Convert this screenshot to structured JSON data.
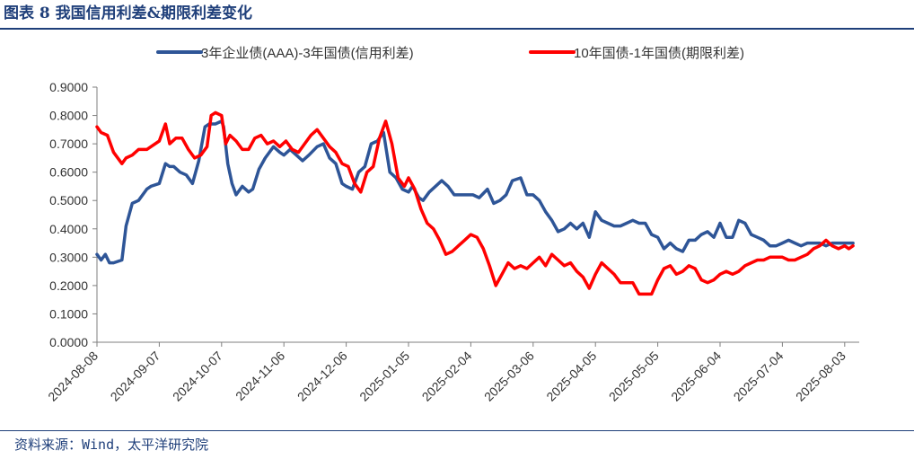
{
  "figure_title": "图表 8  我国信用利差&期限利差变化",
  "source": "资料来源：Wind，太平洋研究院",
  "chart_data": {
    "type": "line",
    "title": "",
    "xlabel": "",
    "ylabel": "",
    "ylim": [
      0,
      0.9
    ],
    "ytick_values": [
      0,
      0.1,
      0.2,
      0.3,
      0.4,
      0.5,
      0.6,
      0.7,
      0.8,
      0.9
    ],
    "yticks": [
      "0.0000",
      "0.1000",
      "0.2000",
      "0.3000",
      "0.4000",
      "0.5000",
      "0.6000",
      "0.7000",
      "0.8000",
      "0.9000"
    ],
    "xlim": [
      "2024-08-08",
      "2025-08-10"
    ],
    "xticks": [
      "2024-08-08",
      "2024-09-07",
      "2024-10-07",
      "2024-11-06",
      "2024-12-06",
      "2025-01-05",
      "2025-02-04",
      "2025-03-06",
      "2025-04-05",
      "2025-05-05",
      "2025-06-04",
      "2025-07-04",
      "2025-08-03"
    ],
    "grid": false,
    "legend_position": "top",
    "series": [
      {
        "name": "3年企业债(AAA)-3年国债(信用利差)",
        "color": "#2e5597",
        "x": [
          "2024-08-08",
          "2024-08-10",
          "2024-08-12",
          "2024-08-14",
          "2024-08-16",
          "2024-08-20",
          "2024-08-22",
          "2024-08-25",
          "2024-08-28",
          "2024-09-01",
          "2024-09-03",
          "2024-09-07",
          "2024-09-10",
          "2024-09-12",
          "2024-09-14",
          "2024-09-17",
          "2024-09-20",
          "2024-09-23",
          "2024-09-26",
          "2024-09-29",
          "2024-10-01",
          "2024-10-04",
          "2024-10-07",
          "2024-10-08",
          "2024-10-10",
          "2024-10-12",
          "2024-10-14",
          "2024-10-17",
          "2024-10-20",
          "2024-10-22",
          "2024-10-25",
          "2024-10-28",
          "2024-11-01",
          "2024-11-04",
          "2024-11-06",
          "2024-11-09",
          "2024-11-12",
          "2024-11-15",
          "2024-11-18",
          "2024-11-22",
          "2024-11-25",
          "2024-11-28",
          "2024-12-01",
          "2024-12-04",
          "2024-12-06",
          "2024-12-09",
          "2024-12-12",
          "2024-12-15",
          "2024-12-18",
          "2024-12-21",
          "2024-12-24",
          "2024-12-27",
          "2024-12-30",
          "2025-01-02",
          "2025-01-05",
          "2025-01-07",
          "2025-01-10",
          "2025-01-12",
          "2025-01-15",
          "2025-01-18",
          "2025-01-21",
          "2025-01-24",
          "2025-01-27",
          "2025-02-01",
          "2025-02-05",
          "2025-02-08",
          "2025-02-12",
          "2025-02-15",
          "2025-02-18",
          "2025-02-21",
          "2025-02-24",
          "2025-02-28",
          "2025-03-03",
          "2025-03-06",
          "2025-03-09",
          "2025-03-12",
          "2025-03-15",
          "2025-03-18",
          "2025-03-21",
          "2025-03-24",
          "2025-03-27",
          "2025-03-30",
          "2025-04-02",
          "2025-04-05",
          "2025-04-08",
          "2025-04-11",
          "2025-04-14",
          "2025-04-17",
          "2025-04-20",
          "2025-04-23",
          "2025-04-26",
          "2025-04-29",
          "2025-05-02",
          "2025-05-05",
          "2025-05-08",
          "2025-05-11",
          "2025-05-14",
          "2025-05-17",
          "2025-05-20",
          "2025-05-23",
          "2025-05-26",
          "2025-05-29",
          "2025-06-01",
          "2025-06-04",
          "2025-06-07",
          "2025-06-10",
          "2025-06-13",
          "2025-06-16",
          "2025-06-19",
          "2025-06-22",
          "2025-06-25",
          "2025-06-28",
          "2025-07-01",
          "2025-07-04",
          "2025-07-07",
          "2025-07-10",
          "2025-07-13",
          "2025-07-16",
          "2025-07-19",
          "2025-07-22",
          "2025-07-25",
          "2025-07-28",
          "2025-07-31",
          "2025-08-03",
          "2025-08-05",
          "2025-08-07"
        ],
        "values": [
          0.31,
          0.29,
          0.31,
          0.28,
          0.28,
          0.29,
          0.41,
          0.49,
          0.5,
          0.54,
          0.55,
          0.56,
          0.63,
          0.62,
          0.62,
          0.6,
          0.59,
          0.56,
          0.64,
          0.76,
          0.77,
          0.77,
          0.78,
          0.76,
          0.63,
          0.56,
          0.52,
          0.55,
          0.53,
          0.54,
          0.61,
          0.65,
          0.69,
          0.67,
          0.66,
          0.68,
          0.66,
          0.64,
          0.66,
          0.69,
          0.7,
          0.65,
          0.63,
          0.56,
          0.55,
          0.54,
          0.6,
          0.62,
          0.7,
          0.71,
          0.74,
          0.6,
          0.58,
          0.54,
          0.53,
          0.55,
          0.51,
          0.5,
          0.53,
          0.55,
          0.57,
          0.55,
          0.52,
          0.52,
          0.52,
          0.51,
          0.54,
          0.49,
          0.5,
          0.52,
          0.57,
          0.58,
          0.52,
          0.52,
          0.5,
          0.46,
          0.43,
          0.39,
          0.4,
          0.42,
          0.4,
          0.42,
          0.37,
          0.46,
          0.43,
          0.42,
          0.41,
          0.41,
          0.42,
          0.43,
          0.42,
          0.42,
          0.38,
          0.37,
          0.33,
          0.35,
          0.33,
          0.32,
          0.36,
          0.36,
          0.38,
          0.39,
          0.37,
          0.42,
          0.37,
          0.37,
          0.43,
          0.42,
          0.38,
          0.37,
          0.36,
          0.34,
          0.34,
          0.35,
          0.36,
          0.35,
          0.34,
          0.35,
          0.35,
          0.35,
          0.34,
          0.35,
          0.35,
          0.35,
          0.35,
          0.35
        ]
      },
      {
        "name": "10年国债-1年国债(期限利差)",
        "color": "#ff0000",
        "x": [
          "2024-08-08",
          "2024-08-10",
          "2024-08-13",
          "2024-08-16",
          "2024-08-20",
          "2024-08-22",
          "2024-08-25",
          "2024-08-28",
          "2024-09-01",
          "2024-09-03",
          "2024-09-07",
          "2024-09-10",
          "2024-09-12",
          "2024-09-15",
          "2024-09-18",
          "2024-09-21",
          "2024-09-24",
          "2024-09-27",
          "2024-09-30",
          "2024-10-02",
          "2024-10-04",
          "2024-10-07",
          "2024-10-09",
          "2024-10-11",
          "2024-10-14",
          "2024-10-17",
          "2024-10-20",
          "2024-10-23",
          "2024-10-26",
          "2024-10-29",
          "2024-11-01",
          "2024-11-04",
          "2024-11-07",
          "2024-11-10",
          "2024-11-13",
          "2024-11-16",
          "2024-11-19",
          "2024-11-22",
          "2024-11-25",
          "2024-11-28",
          "2024-12-01",
          "2024-12-04",
          "2024-12-07",
          "2024-12-10",
          "2024-12-13",
          "2024-12-16",
          "2024-12-19",
          "2024-12-22",
          "2024-12-25",
          "2024-12-28",
          "2024-12-31",
          "2025-01-03",
          "2025-01-05",
          "2025-01-08",
          "2025-01-11",
          "2025-01-14",
          "2025-01-17",
          "2025-01-20",
          "2025-01-23",
          "2025-01-26",
          "2025-01-29",
          "2025-02-01",
          "2025-02-04",
          "2025-02-07",
          "2025-02-10",
          "2025-02-13",
          "2025-02-16",
          "2025-02-19",
          "2025-02-22",
          "2025-02-25",
          "2025-02-28",
          "2025-03-03",
          "2025-03-06",
          "2025-03-09",
          "2025-03-12",
          "2025-03-15",
          "2025-03-18",
          "2025-03-21",
          "2025-03-24",
          "2025-03-27",
          "2025-03-30",
          "2025-04-02",
          "2025-04-05",
          "2025-04-08",
          "2025-04-11",
          "2025-04-14",
          "2025-04-17",
          "2025-04-20",
          "2025-04-23",
          "2025-04-26",
          "2025-04-29",
          "2025-05-02",
          "2025-05-05",
          "2025-05-08",
          "2025-05-11",
          "2025-05-14",
          "2025-05-17",
          "2025-05-20",
          "2025-05-23",
          "2025-05-26",
          "2025-05-29",
          "2025-06-01",
          "2025-06-04",
          "2025-06-07",
          "2025-06-10",
          "2025-06-13",
          "2025-06-16",
          "2025-06-19",
          "2025-06-22",
          "2025-06-25",
          "2025-06-28",
          "2025-07-01",
          "2025-07-04",
          "2025-07-07",
          "2025-07-10",
          "2025-07-13",
          "2025-07-16",
          "2025-07-19",
          "2025-07-22",
          "2025-07-25",
          "2025-07-28",
          "2025-07-31",
          "2025-08-03",
          "2025-08-05",
          "2025-08-07"
        ],
        "values": [
          0.76,
          0.74,
          0.73,
          0.67,
          0.63,
          0.65,
          0.66,
          0.68,
          0.68,
          0.69,
          0.71,
          0.77,
          0.7,
          0.72,
          0.72,
          0.68,
          0.65,
          0.66,
          0.69,
          0.8,
          0.81,
          0.8,
          0.7,
          0.73,
          0.71,
          0.68,
          0.68,
          0.72,
          0.73,
          0.7,
          0.71,
          0.69,
          0.71,
          0.68,
          0.67,
          0.7,
          0.73,
          0.75,
          0.72,
          0.69,
          0.67,
          0.63,
          0.62,
          0.56,
          0.53,
          0.6,
          0.62,
          0.72,
          0.78,
          0.7,
          0.58,
          0.55,
          0.58,
          0.54,
          0.47,
          0.42,
          0.4,
          0.36,
          0.31,
          0.32,
          0.34,
          0.36,
          0.38,
          0.37,
          0.33,
          0.27,
          0.2,
          0.24,
          0.28,
          0.26,
          0.27,
          0.26,
          0.28,
          0.3,
          0.27,
          0.31,
          0.29,
          0.27,
          0.28,
          0.25,
          0.23,
          0.19,
          0.24,
          0.28,
          0.26,
          0.24,
          0.21,
          0.21,
          0.21,
          0.17,
          0.17,
          0.17,
          0.22,
          0.26,
          0.27,
          0.24,
          0.25,
          0.27,
          0.26,
          0.22,
          0.21,
          0.22,
          0.24,
          0.25,
          0.24,
          0.25,
          0.27,
          0.28,
          0.29,
          0.29,
          0.3,
          0.3,
          0.3,
          0.29,
          0.29,
          0.3,
          0.31,
          0.33,
          0.34,
          0.36,
          0.34,
          0.33,
          0.34,
          0.33,
          0.34
        ]
      }
    ]
  }
}
